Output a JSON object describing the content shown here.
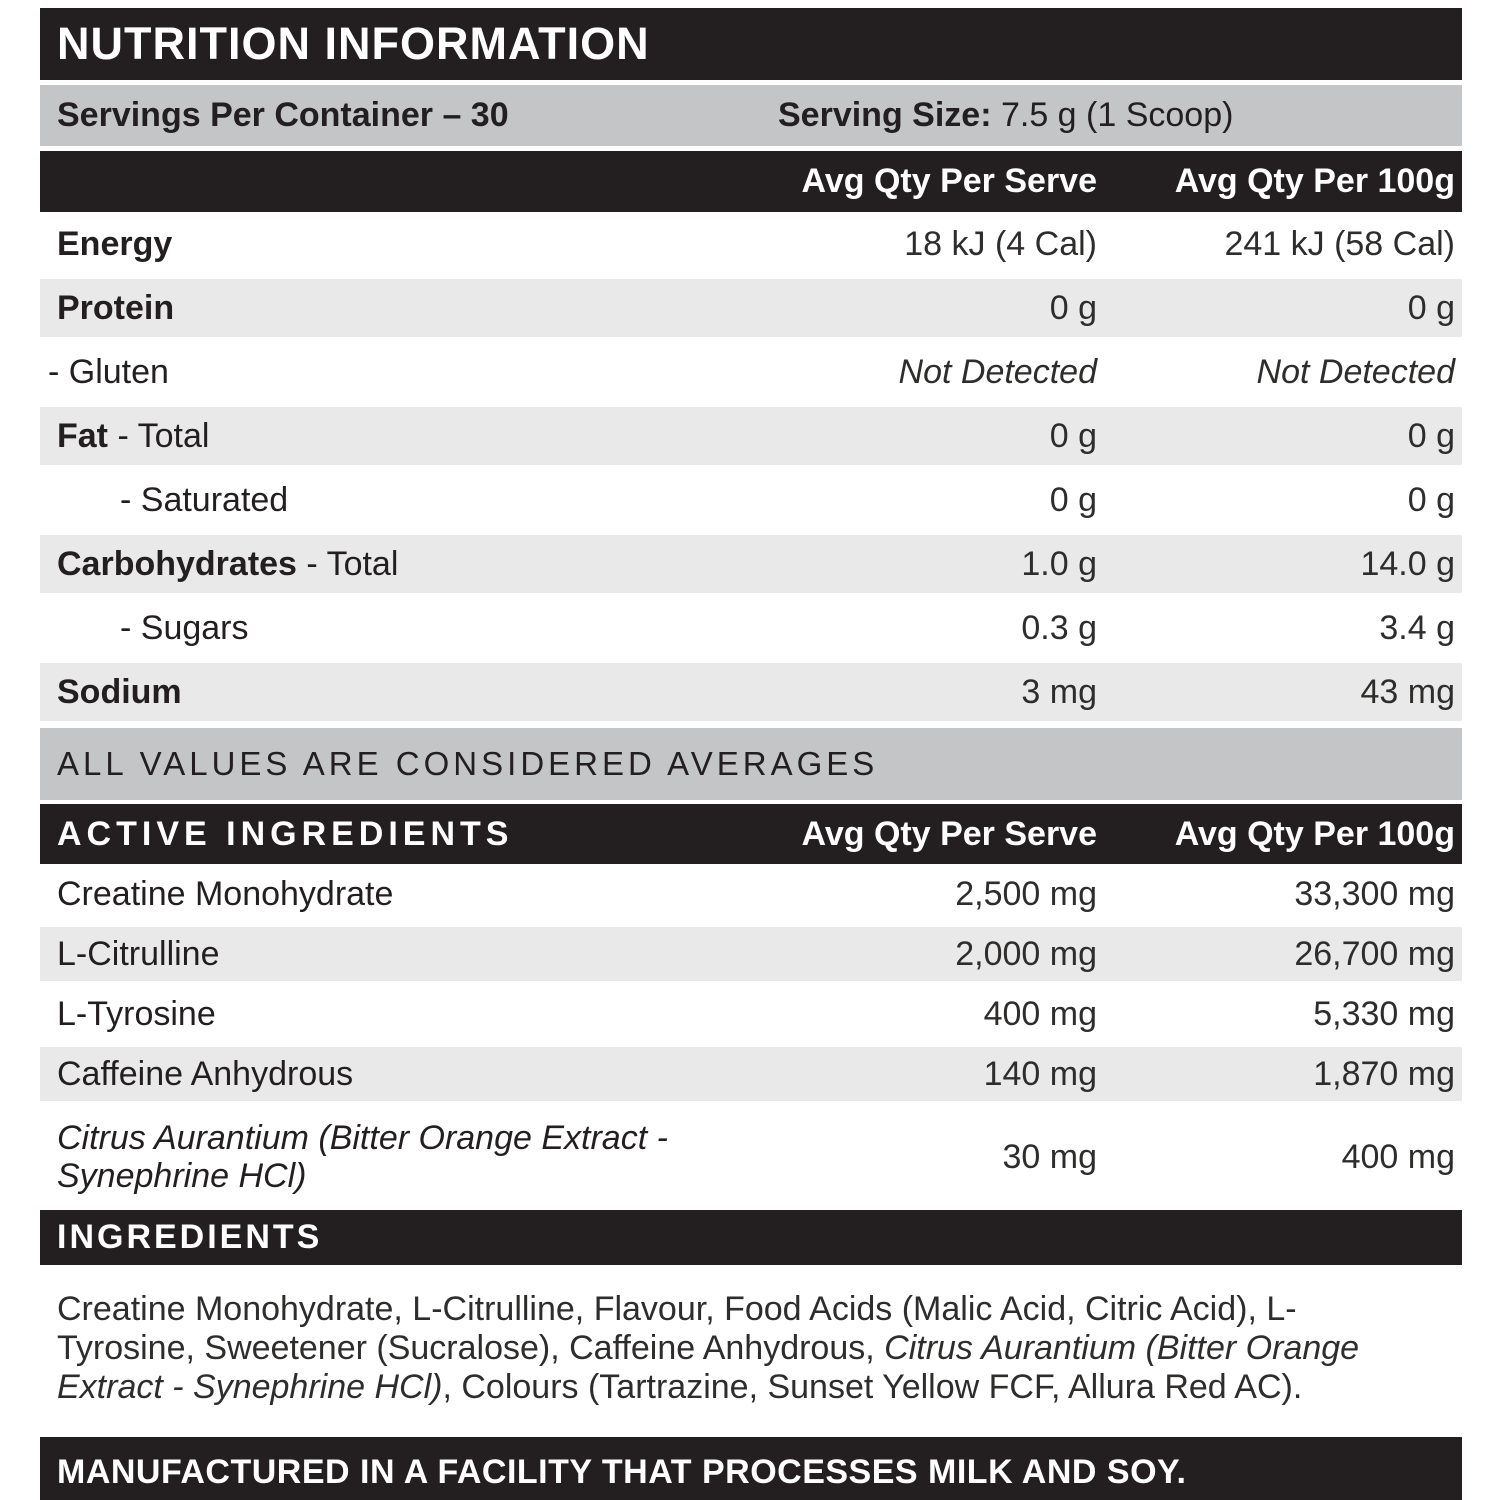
{
  "title": "NUTRITION INFORMATION",
  "servings_bar": {
    "servings_per_container": "Servings Per Container – 30",
    "serving_size_label": "Serving Size:",
    "serving_size_value": "7.5 g (1 Scoop)"
  },
  "column_headers": {
    "per_serve": "Avg Qty Per Serve",
    "per_100g": "Avg Qty Per 100g"
  },
  "nutrition_table": {
    "rows": [
      {
        "label_bold": "Energy",
        "label_rest": "",
        "indent": 0,
        "per_serve": "18 kJ (4 Cal)",
        "per_100g": "241 kJ (58 Cal)",
        "shaded": false,
        "italic_values": false
      },
      {
        "label_bold": "Protein",
        "label_rest": "",
        "indent": 0,
        "per_serve": "0 g",
        "per_100g": "0 g",
        "shaded": true,
        "italic_values": false
      },
      {
        "label_bold": "",
        "label_rest": "- Gluten",
        "indent": 1,
        "per_serve": "Not Detected",
        "per_100g": "Not Detected",
        "shaded": false,
        "italic_values": true
      },
      {
        "label_bold": "Fat",
        "label_rest": " - Total",
        "indent": 0,
        "per_serve": "0 g",
        "per_100g": "0 g",
        "shaded": true,
        "italic_values": false
      },
      {
        "label_bold": "",
        "label_rest": "- Saturated",
        "indent": 2,
        "per_serve": "0 g",
        "per_100g": "0 g",
        "shaded": false,
        "italic_values": false
      },
      {
        "label_bold": "Carbohydrates",
        "label_rest": " - Total",
        "indent": 0,
        "per_serve": "1.0 g",
        "per_100g": "14.0 g",
        "shaded": true,
        "italic_values": false
      },
      {
        "label_bold": "",
        "label_rest": "- Sugars",
        "indent": 2,
        "per_serve": "0.3 g",
        "per_100g": "3.4 g",
        "shaded": false,
        "italic_values": false
      },
      {
        "label_bold": "Sodium",
        "label_rest": "",
        "indent": 0,
        "per_serve": "3 mg",
        "per_100g": "43 mg",
        "shaded": true,
        "italic_values": false
      }
    ]
  },
  "averages_note": "ALL VALUES ARE CONSIDERED AVERAGES",
  "active_ingredients": {
    "header": "ACTIVE INGREDIENTS",
    "rows": [
      {
        "label": "Creatine Monohydrate",
        "italic": false,
        "per_serve": "2,500 mg",
        "per_100g": "33,300 mg",
        "shaded": false,
        "tall": false
      },
      {
        "label": "L-Citrulline",
        "italic": false,
        "per_serve": "2,000 mg",
        "per_100g": "26,700 mg",
        "shaded": true,
        "tall": false
      },
      {
        "label": "L-Tyrosine",
        "italic": false,
        "per_serve": "400 mg",
        "per_100g": "5,330 mg",
        "shaded": false,
        "tall": false
      },
      {
        "label": "Caffeine Anhydrous",
        "italic": false,
        "per_serve": "140 mg",
        "per_100g": "1,870 mg",
        "shaded": true,
        "tall": false
      },
      {
        "label": "Citrus Aurantium (Bitter Orange Extract - Synephrine HCl)",
        "italic": true,
        "per_serve": "30 mg",
        "per_100g": "400 mg",
        "shaded": false,
        "tall": true
      }
    ]
  },
  "ingredients_section": {
    "header": "INGREDIENTS",
    "segments": [
      {
        "text": "Creatine Monohydrate, L-Citrulline, Flavour, Food Acids (Malic Acid, Citric Acid), L-Tyrosine, Sweetener (Sucralose), Caffeine Anhydrous, ",
        "italic": false
      },
      {
        "text": "Citrus Aurantium (Bitter Orange Extract - Synephrine HCl)",
        "italic": true
      },
      {
        "text": ", Colours (Tartrazine, Sunset Yellow FCF, Allura Red AC).",
        "italic": false
      }
    ]
  },
  "allergen_notice": "MANUFACTURED IN A FACILITY THAT PROCESSES MILK AND SOY.",
  "colors": {
    "black": "#231f20",
    "bar_gray": "#c3c5c7",
    "row_gray": "#e9e9ea",
    "text_value": "#2e2d2c"
  }
}
